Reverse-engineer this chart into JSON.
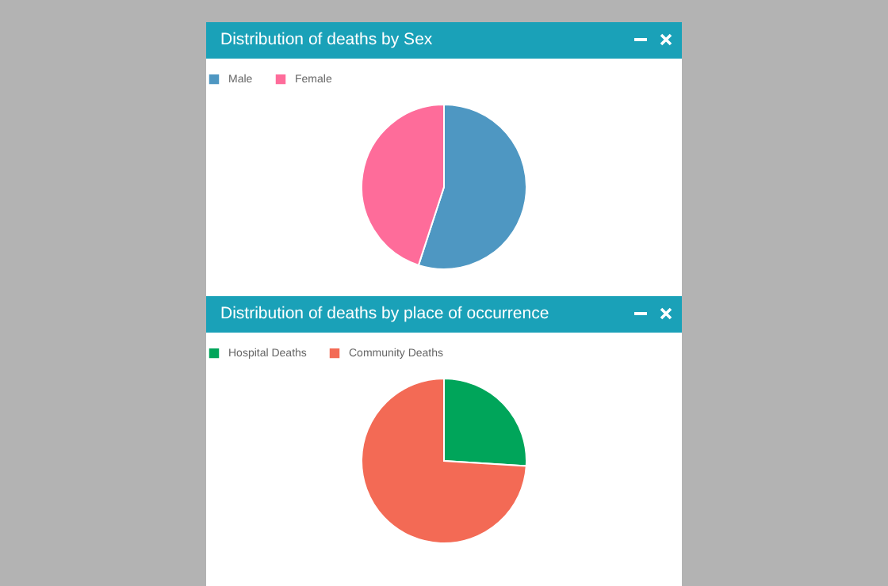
{
  "chart_data": [
    {
      "type": "pie",
      "title": "Distribution of deaths by Sex",
      "categories": [
        "Male",
        "Female"
      ],
      "values": [
        55,
        45
      ],
      "colors": [
        "#4e97c2",
        "#fe6c9a"
      ],
      "legend": "top"
    },
    {
      "type": "pie",
      "title": "Distribution of deaths by place of occurrence",
      "categories": [
        "Hospital Deaths",
        "Community Deaths"
      ],
      "values": [
        26,
        74
      ],
      "colors": [
        "#00a55a",
        "#f36a55"
      ],
      "legend": "top"
    }
  ]
}
